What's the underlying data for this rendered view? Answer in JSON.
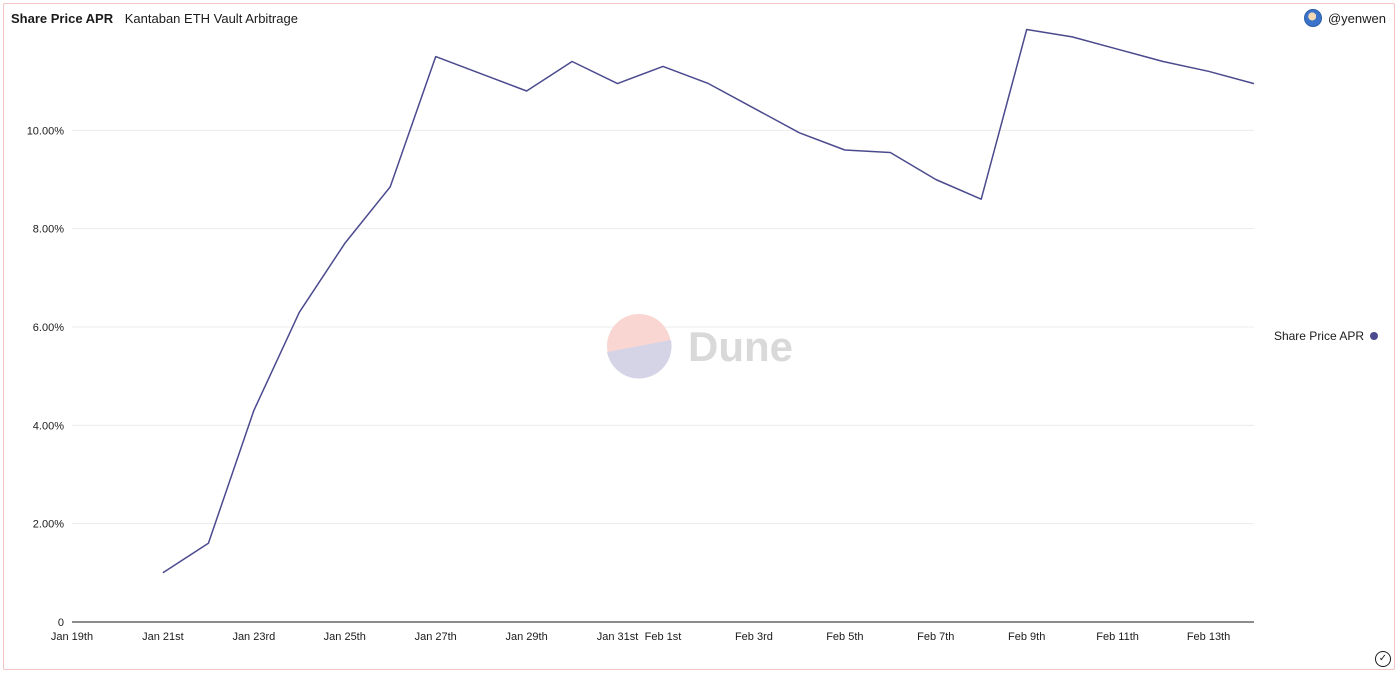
{
  "header": {
    "title": "Share Price APR",
    "subtitle": "Kantaban ETH Vault Arbitrage",
    "author": "@yenwen"
  },
  "watermark": {
    "text": "Dune"
  },
  "legend": {
    "label": "Share Price APR",
    "color": "#4b4a8e"
  },
  "footer": {
    "status_icon": "check-circle-icon"
  },
  "chart_data": {
    "type": "line",
    "title": "Share Price APR",
    "xlabel": "",
    "ylabel": "",
    "xlim": [
      "2022-01-19",
      "2022-02-14"
    ],
    "ylim": [
      0,
      12
    ],
    "y_ticks": [
      {
        "value": 0,
        "label": "0"
      },
      {
        "value": 2,
        "label": "2.00%"
      },
      {
        "value": 4,
        "label": "4.00%"
      },
      {
        "value": 6,
        "label": "6.00%"
      },
      {
        "value": 8,
        "label": "8.00%"
      },
      {
        "value": 10,
        "label": "10.00%"
      }
    ],
    "x_ticks": [
      {
        "date": "2022-01-19",
        "label": "Jan 19th"
      },
      {
        "date": "2022-01-21",
        "label": "Jan 21st"
      },
      {
        "date": "2022-01-23",
        "label": "Jan 23rd"
      },
      {
        "date": "2022-01-25",
        "label": "Jan 25th"
      },
      {
        "date": "2022-01-27",
        "label": "Jan 27th"
      },
      {
        "date": "2022-01-29",
        "label": "Jan 29th"
      },
      {
        "date": "2022-01-31",
        "label": "Jan 31st"
      },
      {
        "date": "2022-02-01",
        "label": "Feb 1st"
      },
      {
        "date": "2022-02-03",
        "label": "Feb 3rd"
      },
      {
        "date": "2022-02-05",
        "label": "Feb 5th"
      },
      {
        "date": "2022-02-07",
        "label": "Feb 7th"
      },
      {
        "date": "2022-02-09",
        "label": "Feb 9th"
      },
      {
        "date": "2022-02-11",
        "label": "Feb 11th"
      },
      {
        "date": "2022-02-13",
        "label": "Feb 13th"
      }
    ],
    "grid": true,
    "legend_position": "right",
    "series": [
      {
        "name": "Share Price APR",
        "color": "#4b4a8e",
        "points": [
          {
            "x": "2022-01-21",
            "y": 1.0
          },
          {
            "x": "2022-01-22",
            "y": 1.6
          },
          {
            "x": "2022-01-23",
            "y": 4.3
          },
          {
            "x": "2022-01-24",
            "y": 6.3
          },
          {
            "x": "2022-01-25",
            "y": 7.7
          },
          {
            "x": "2022-01-26",
            "y": 8.85
          },
          {
            "x": "2022-01-27",
            "y": 11.5
          },
          {
            "x": "2022-01-28",
            "y": 11.15
          },
          {
            "x": "2022-01-29",
            "y": 10.8
          },
          {
            "x": "2022-01-30",
            "y": 11.4
          },
          {
            "x": "2022-01-31",
            "y": 10.95
          },
          {
            "x": "2022-02-01",
            "y": 11.3
          },
          {
            "x": "2022-02-02",
            "y": 10.95
          },
          {
            "x": "2022-02-03",
            "y": 10.45
          },
          {
            "x": "2022-02-04",
            "y": 9.95
          },
          {
            "x": "2022-02-05",
            "y": 9.6
          },
          {
            "x": "2022-02-06",
            "y": 9.55
          },
          {
            "x": "2022-02-07",
            "y": 9.0
          },
          {
            "x": "2022-02-08",
            "y": 8.6
          },
          {
            "x": "2022-02-09",
            "y": 12.05
          },
          {
            "x": "2022-02-10",
            "y": 11.9
          },
          {
            "x": "2022-02-11",
            "y": 11.65
          },
          {
            "x": "2022-02-12",
            "y": 11.4
          },
          {
            "x": "2022-02-13",
            "y": 11.2
          },
          {
            "x": "2022-02-14",
            "y": 10.95
          }
        ]
      }
    ]
  }
}
